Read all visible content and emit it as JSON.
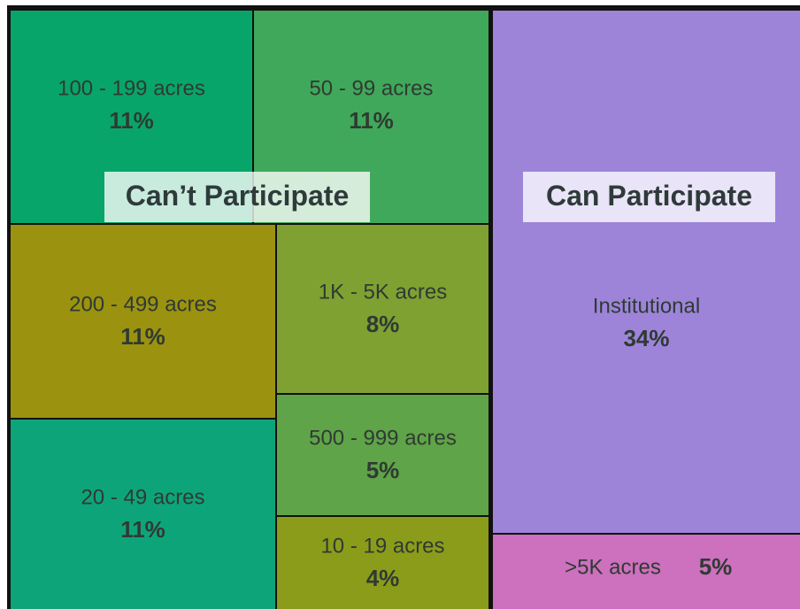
{
  "chart_data": {
    "type": "treemap",
    "groups": [
      "Can’t Participate",
      "Can Participate"
    ],
    "categories": [
      "100 - 199 acres",
      "50 - 99 acres",
      "200 - 499 acres",
      "1K - 5K acres",
      "500 - 999 acres",
      "20 - 49 acres",
      "10 - 19 acres",
      "Institutional",
      ">5K acres"
    ],
    "values": [
      11,
      11,
      11,
      8,
      5,
      11,
      4,
      34,
      5
    ],
    "value_labels": [
      "11%",
      "11%",
      "11%",
      "8%",
      "5%",
      "11%",
      "4%",
      "34%",
      "5%"
    ],
    "colors": [
      "#08a56a",
      "#40a85a",
      "#9b920f",
      "#7fa132",
      "#5fa448",
      "#0ea47a",
      "#8b9c1b",
      "#9d84d9",
      "#cd70be"
    ]
  }
}
